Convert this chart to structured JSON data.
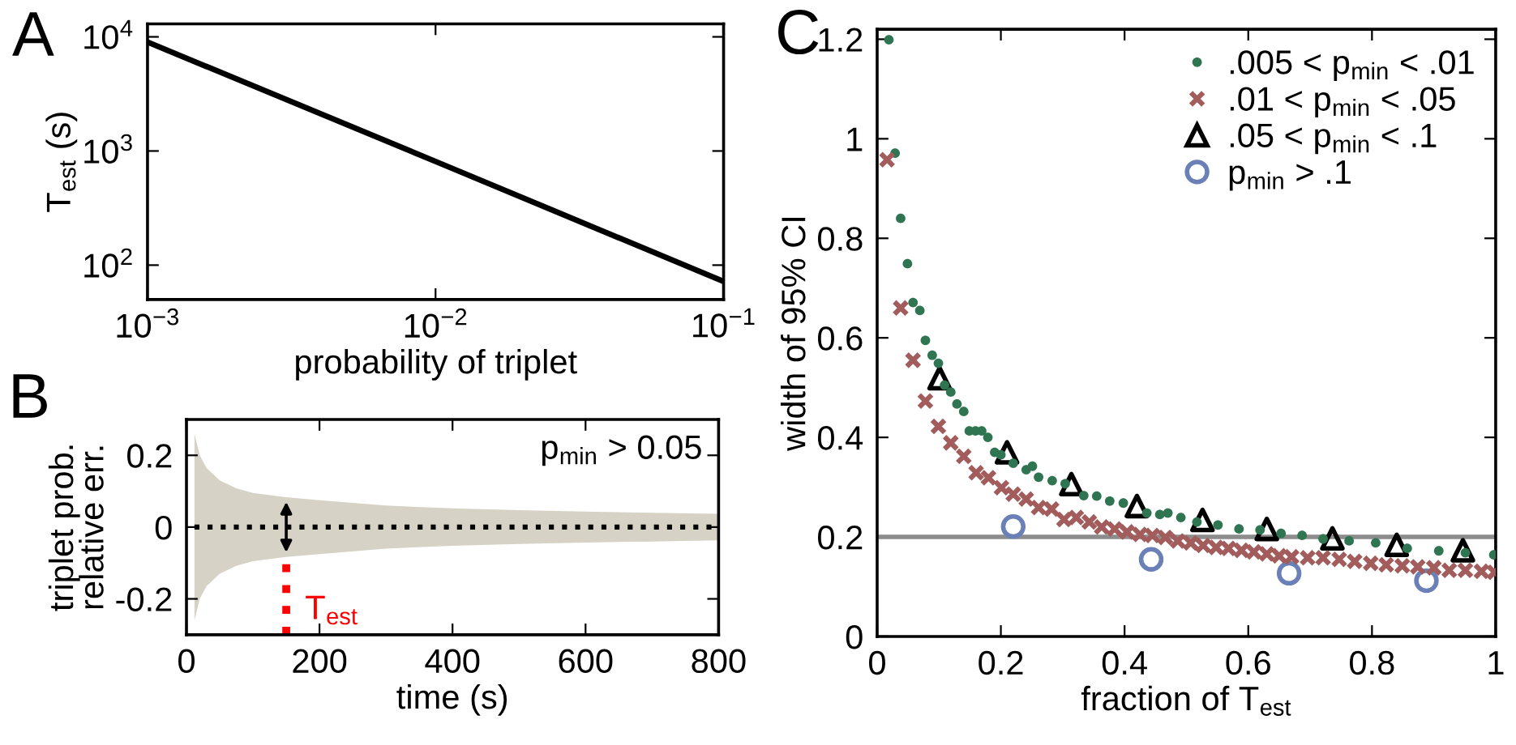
{
  "chart_data": [
    {
      "type": "line",
      "xlabel": "probability of triplet",
      "ylabel": "T$_{est}$ (s)",
      "annotations": [
        "A"
      ],
      "log": "xy",
      "x": [
        0.001,
        0.01,
        0.1
      ],
      "series": [
        {
          "color": "#000000",
          "values": [
            9000,
            810,
            72
          ]
        }
      ],
      "xlim": [
        0.001,
        0.1
      ],
      "ylim": [
        50,
        13000
      ],
      "xticks": [
        {
          "value": 0.001,
          "label": "10$^{−3}$"
        },
        {
          "value": 0.01,
          "label": "10$^{−2}$"
        },
        {
          "value": 0.1,
          "label": "10$^{−1}$"
        }
      ],
      "yticks": [
        {
          "value": 100,
          "label": "10$^{2}$"
        },
        {
          "value": 1000,
          "label": "10$^{3}$"
        },
        {
          "value": 10000,
          "label": "10$^{4}$"
        }
      ],
      "grid": false,
      "legend": false
    },
    {
      "type": "line",
      "xlabel": "time (s)",
      "ylabel": "triplet prob.\nrelative err.",
      "annotations": [
        "B",
        "p$_{min}$ > 0.05"
      ],
      "x": [
        12,
        20,
        30,
        50,
        75,
        100,
        150,
        200,
        300,
        400,
        500,
        600,
        700,
        800
      ],
      "series": [
        {
          "color": "#000000",
          "line_style": "dotted",
          "values": [
            0,
            0,
            0,
            0,
            0,
            0,
            0,
            0,
            0,
            0,
            0,
            0,
            0,
            0
          ],
          "lower": [
            -0.26,
            -0.2,
            -0.165,
            -0.13,
            -0.108,
            -0.095,
            -0.083,
            -0.075,
            -0.06,
            -0.052,
            -0.047,
            -0.043,
            -0.04,
            -0.037
          ],
          "upper": [
            0.26,
            0.2,
            0.165,
            0.13,
            0.108,
            0.095,
            0.083,
            0.075,
            0.06,
            0.052,
            0.047,
            0.043,
            0.04,
            0.037
          ]
        }
      ],
      "ref_lines": [
        {
          "axis": "x",
          "value": 150,
          "label": "T$_{est}$",
          "color": "#ff0000",
          "line_style": "dotted"
        }
      ],
      "xlim": [
        0,
        800
      ],
      "ylim": [
        -0.3,
        0.3
      ],
      "xticks": [
        0,
        200,
        400,
        600,
        800
      ],
      "yticks": [
        -0.2,
        0,
        0.2
      ],
      "grid": false,
      "legend": false
    },
    {
      "type": "scatter",
      "xlabel": "fraction of T$_{est}$",
      "ylabel": "width of 95% CI",
      "annotations": [
        "C"
      ],
      "series": [
        {
          "name": ".005 < p$_{min}$ < .01",
          "color": "#2f7552",
          "marker": "circle",
          "x": [
            0.019,
            0.029,
            0.038,
            0.049,
            0.058,
            0.069,
            0.078,
            0.089,
            0.099,
            0.109,
            0.119,
            0.129,
            0.14,
            0.149,
            0.159,
            0.169,
            0.179,
            0.19,
            0.2,
            0.22,
            0.241,
            0.251,
            0.261,
            0.283,
            0.304,
            0.334,
            0.355,
            0.376,
            0.398,
            0.436,
            0.457,
            0.47,
            0.491,
            0.517,
            0.551,
            0.585,
            0.619,
            0.653,
            0.687,
            0.721,
            0.763,
            0.806,
            0.857,
            0.908,
            0.951,
            0.997
          ],
          "values": [
            1.199,
            0.971,
            0.84,
            0.749,
            0.671,
            0.655,
            0.595,
            0.565,
            0.549,
            0.505,
            0.491,
            0.467,
            0.452,
            0.413,
            0.413,
            0.413,
            0.4,
            0.37,
            0.365,
            0.348,
            0.335,
            0.342,
            0.32,
            0.313,
            0.307,
            0.283,
            0.282,
            0.272,
            0.268,
            0.248,
            0.245,
            0.248,
            0.239,
            0.23,
            0.224,
            0.216,
            0.214,
            0.207,
            0.203,
            0.196,
            0.192,
            0.188,
            0.177,
            0.172,
            0.168,
            0.164
          ]
        },
        {
          "name": ".01 < p$_{min}$ < .05",
          "color": "#a35c5c",
          "marker": "cross",
          "x": [
            0.016,
            0.038,
            0.058,
            0.078,
            0.099,
            0.119,
            0.14,
            0.16,
            0.18,
            0.201,
            0.22,
            0.241,
            0.261,
            0.282,
            0.302,
            0.322,
            0.343,
            0.363,
            0.384,
            0.404,
            0.425,
            0.445,
            0.466,
            0.486,
            0.507,
            0.527,
            0.548,
            0.568,
            0.589,
            0.609,
            0.63,
            0.65,
            0.67,
            0.696,
            0.721,
            0.747,
            0.772,
            0.798,
            0.823,
            0.849,
            0.874,
            0.9,
            0.925,
            0.951,
            0.977,
            0.998
          ],
          "values": [
            0.958,
            0.66,
            0.555,
            0.473,
            0.422,
            0.389,
            0.362,
            0.329,
            0.319,
            0.299,
            0.286,
            0.276,
            0.259,
            0.256,
            0.235,
            0.239,
            0.23,
            0.22,
            0.216,
            0.21,
            0.205,
            0.203,
            0.199,
            0.192,
            0.188,
            0.183,
            0.179,
            0.177,
            0.173,
            0.17,
            0.166,
            0.162,
            0.16,
            0.158,
            0.158,
            0.155,
            0.151,
            0.147,
            0.144,
            0.142,
            0.14,
            0.138,
            0.133,
            0.133,
            0.131,
            0.129
          ]
        },
        {
          "name": ".05 < p$_{min}$ < .1",
          "color": "#000000",
          "marker": "triangle",
          "x": [
            0.101,
            0.21,
            0.314,
            0.42,
            0.526,
            0.63,
            0.736,
            0.84,
            0.947
          ],
          "values": [
            0.519,
            0.37,
            0.306,
            0.262,
            0.234,
            0.216,
            0.197,
            0.184,
            0.173
          ]
        },
        {
          "name": "p$_{min}$ > .1",
          "color": "#6a80b6",
          "marker": "circle_open",
          "x": [
            0.22,
            0.443,
            0.666,
            0.888
          ],
          "values": [
            0.221,
            0.155,
            0.127,
            0.112
          ]
        }
      ],
      "ref_lines": [
        {
          "axis": "y",
          "value": 0.2,
          "color": "#8c8c8c",
          "line_style": "solid"
        }
      ],
      "xlim": [
        0,
        1
      ],
      "ylim": [
        0,
        1.22
      ],
      "xticks": [
        0,
        0.2,
        0.4,
        0.6,
        0.8,
        1
      ],
      "yticks": [
        0,
        0.2,
        0.4,
        0.6,
        0.8,
        1,
        1.2
      ],
      "grid": false,
      "legend": "top right"
    }
  ]
}
